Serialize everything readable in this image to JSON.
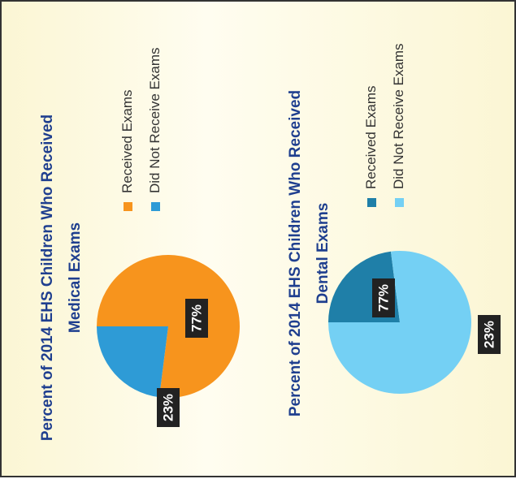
{
  "chart_data": [
    {
      "type": "pie",
      "title": "Percent of 2014 EHS Children Who Received Medical Exams",
      "categories": [
        "Received Exams",
        "Did Not Receive Exams"
      ],
      "values": [
        77,
        23
      ],
      "value_labels": [
        "77%",
        "23%"
      ],
      "colors": [
        "#f7941d",
        "#2e9bd6"
      ]
    },
    {
      "type": "pie",
      "title": "Percent of 2014 EHS Children Who Received Dental Exams",
      "categories": [
        "Received Exams",
        "Did Not Receive Exams"
      ],
      "values": [
        23,
        77
      ],
      "value_labels": [
        "23%",
        "77%"
      ],
      "colors": [
        "#1f7fa8",
        "#74d0f4"
      ]
    }
  ]
}
